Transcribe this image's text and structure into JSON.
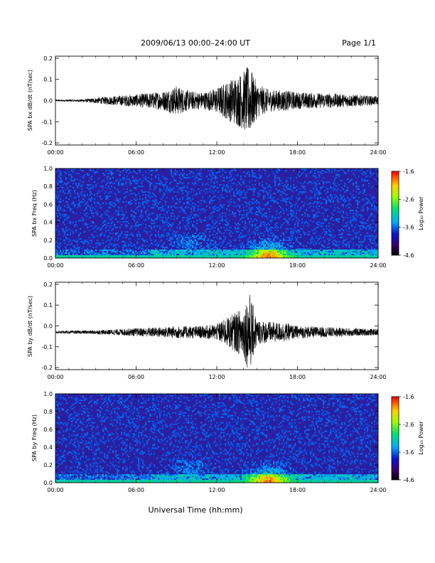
{
  "header": {
    "title": "2009/06/13  00:00–24:00 UT",
    "page": "Page 1/1"
  },
  "x_axis_label": "Universal Time (hh:mm)",
  "colors": {
    "trace": "#000000",
    "spec_bg": "#2a1fa0"
  },
  "chart_data": [
    {
      "type": "line",
      "ylabel": "SPA bx dB/dt (nT/sec)",
      "xlim": [
        0,
        24
      ],
      "ylim": [
        -0.21,
        0.21
      ],
      "x_ticks": [
        "00:00",
        "06:00",
        "12:00",
        "18:00",
        "24:00"
      ],
      "y_ticks": [
        "-0.2",
        "-0.1",
        "0.0",
        "0.1",
        "0.2"
      ],
      "y_tick_values": [
        -0.2,
        -0.1,
        0.0,
        0.1,
        0.2
      ],
      "baseline": 0.0,
      "envelope": {
        "hours": [
          0,
          2,
          4,
          6,
          8,
          9,
          10,
          11,
          12,
          13,
          14,
          14.4,
          15,
          16,
          17,
          18,
          20,
          22,
          24
        ],
        "amplitude": [
          0.004,
          0.006,
          0.02,
          0.03,
          0.045,
          0.07,
          0.045,
          0.04,
          0.06,
          0.1,
          0.14,
          0.17,
          0.08,
          0.05,
          0.05,
          0.04,
          0.035,
          0.03,
          0.02
        ]
      }
    },
    {
      "type": "heatmap",
      "ylabel": "SPA bx Freq (Hz)",
      "xlim": [
        0,
        24
      ],
      "ylim": [
        0,
        1.0
      ],
      "x_ticks": [
        "00:00",
        "06:00",
        "12:00",
        "18:00",
        "24:00"
      ],
      "y_ticks": [
        "0.0",
        "0.2",
        "0.4",
        "0.6",
        "0.8",
        "1.0"
      ],
      "y_tick_values": [
        0.0,
        0.2,
        0.4,
        0.6,
        0.8,
        1.0
      ],
      "colorbar": {
        "label": "Log₁₀ Power",
        "min": -4.6,
        "max": -1.6,
        "ticks": [
          "-1.6",
          "-2.6",
          "-3.6",
          "-4.6"
        ],
        "tick_values": [
          -1.6,
          -2.6,
          -3.6,
          -4.6
        ]
      }
    },
    {
      "type": "line",
      "ylabel": "SPA by dB/dt (nT/sec)",
      "xlim": [
        0,
        24
      ],
      "ylim": [
        -0.21,
        0.21
      ],
      "x_ticks": [
        "00:00",
        "06:00",
        "12:00",
        "18:00",
        "24:00"
      ],
      "y_ticks": [
        "-0.2",
        "-0.1",
        "0.0",
        "0.1",
        "0.2"
      ],
      "y_tick_values": [
        -0.2,
        -0.1,
        0.0,
        0.1,
        0.2
      ],
      "baseline": -0.03,
      "envelope": {
        "hours": [
          0,
          2,
          4,
          6,
          8,
          9,
          10,
          11,
          12,
          13,
          14,
          14.4,
          15,
          16,
          17,
          18,
          20,
          22,
          24
        ],
        "amplitude": [
          0.006,
          0.008,
          0.012,
          0.02,
          0.025,
          0.03,
          0.03,
          0.03,
          0.04,
          0.08,
          0.12,
          0.2,
          0.06,
          0.05,
          0.045,
          0.03,
          0.025,
          0.02,
          0.015
        ]
      }
    },
    {
      "type": "heatmap",
      "ylabel": "SPA by Freq (Hz)",
      "xlim": [
        0,
        24
      ],
      "ylim": [
        0,
        1.0
      ],
      "x_ticks": [
        "00:00",
        "06:00",
        "12:00",
        "18:00",
        "24:00"
      ],
      "y_ticks": [
        "0.0",
        "0.2",
        "0.4",
        "0.6",
        "0.8",
        "1.0"
      ],
      "y_tick_values": [
        0.0,
        0.2,
        0.4,
        0.6,
        0.8,
        1.0
      ],
      "colorbar": {
        "label": "Log₁₀ Power",
        "min": -4.6,
        "max": -1.6,
        "ticks": [
          "-1.6",
          "-2.6",
          "-3.6",
          "-4.6"
        ],
        "tick_values": [
          -1.6,
          -2.6,
          -3.6,
          -4.6
        ]
      }
    }
  ]
}
